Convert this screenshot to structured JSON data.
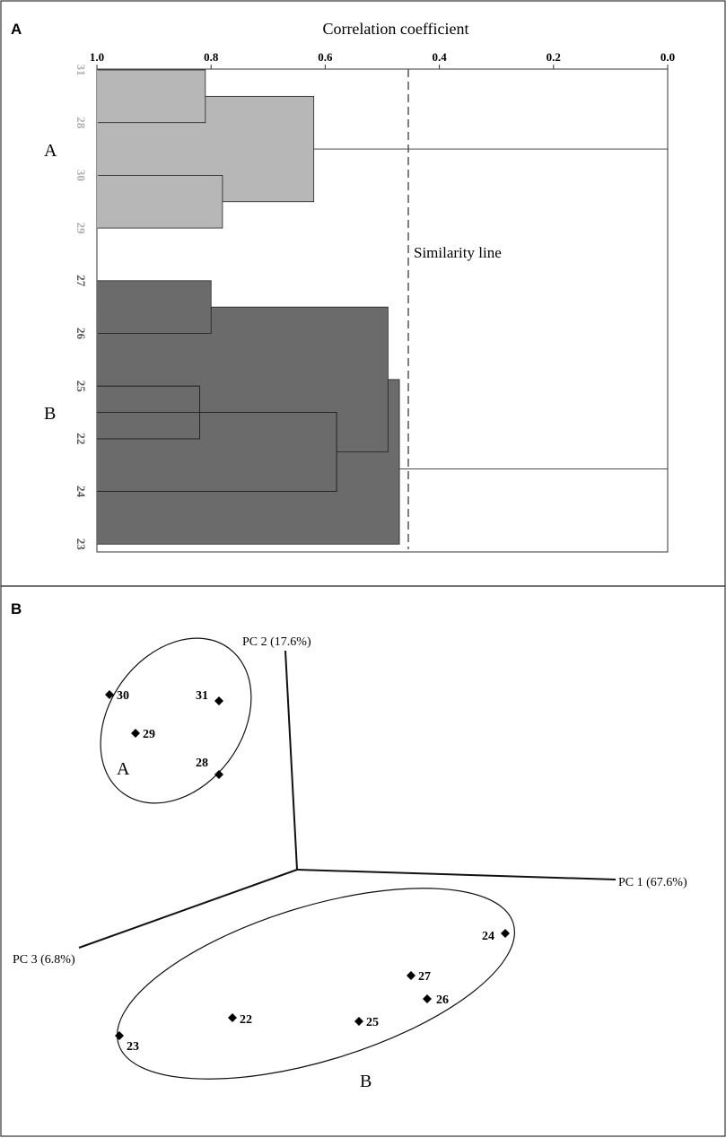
{
  "panels": {
    "a_letter": "A",
    "b_letter": "B"
  },
  "colors": {
    "cluster_a": "#b7b7b7",
    "cluster_b": "#6b6b6b",
    "leaf_a_text": "#b0b0b0",
    "leaf_b_text": "#555555",
    "line": "#333333"
  },
  "chart_data": [
    {
      "type": "dendrogram",
      "title": "Correlation coefficient",
      "xlim": [
        1.0,
        0.0
      ],
      "xticks": [
        "1.0",
        "0.8",
        "0.6",
        "0.4",
        "0.2",
        "0.0"
      ],
      "leaves": [
        "31",
        "28",
        "30",
        "29",
        "27",
        "26",
        "25",
        "22",
        "24",
        "23"
      ],
      "clusters": [
        {
          "name": "A",
          "members": [
            "31",
            "28",
            "30",
            "29"
          ]
        },
        {
          "name": "B",
          "members": [
            "27",
            "26",
            "25",
            "22",
            "24",
            "23"
          ]
        }
      ],
      "merges": [
        {
          "a": "31",
          "b": "28",
          "height": 0.81
        },
        {
          "a": "30",
          "b": "29",
          "height": 0.78
        },
        {
          "a": "31-28",
          "b": "30-29",
          "height": 0.62
        },
        {
          "a": "27",
          "b": "26",
          "height": 0.8
        },
        {
          "a": "25",
          "b": "22",
          "height": 0.82
        },
        {
          "a": "25-22",
          "b": "24",
          "height": 0.58
        },
        {
          "a": "27-26",
          "b": "25-22-24",
          "height": 0.49
        },
        {
          "a": "B-sub",
          "b": "23",
          "height": 0.47
        },
        {
          "a": "A",
          "b": "B",
          "height": 0.0
        }
      ],
      "similarity_line": {
        "value": 0.455,
        "label": "Similarity line"
      }
    },
    {
      "type": "scatter",
      "axes": [
        {
          "label": "PC 1 (67.6%)"
        },
        {
          "label": "PC 2 (17.6%)"
        },
        {
          "label": "PC 3 (6.8%)"
        }
      ],
      "groups": [
        {
          "name": "A",
          "points": [
            "30",
            "31",
            "29",
            "28"
          ]
        },
        {
          "name": "B",
          "points": [
            "24",
            "27",
            "26",
            "22",
            "25",
            "23"
          ]
        }
      ]
    }
  ]
}
